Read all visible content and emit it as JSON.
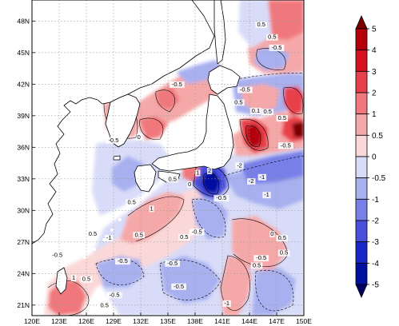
{
  "map": {
    "lon_range": [
      120,
      150
    ],
    "lat_range": [
      20,
      50
    ],
    "lon_ticks": [
      {
        "value": 120,
        "label": "120E"
      },
      {
        "value": 123,
        "label": "123E"
      },
      {
        "value": 126,
        "label": "126E"
      },
      {
        "value": 129,
        "label": "129E"
      },
      {
        "value": 132,
        "label": "132E"
      },
      {
        "value": 135,
        "label": "135E"
      },
      {
        "value": 138,
        "label": "138E"
      },
      {
        "value": 141,
        "label": "141E"
      },
      {
        "value": 144,
        "label": "144E"
      },
      {
        "value": 147,
        "label": "147E"
      },
      {
        "value": 150,
        "label": "150E"
      }
    ],
    "lat_ticks": [
      {
        "value": 21,
        "label": "21N"
      },
      {
        "value": 24,
        "label": "24N"
      },
      {
        "value": 27,
        "label": "27N"
      },
      {
        "value": 30,
        "label": "30N"
      },
      {
        "value": 33,
        "label": "33N"
      },
      {
        "value": 36,
        "label": "36N"
      },
      {
        "value": 39,
        "label": "39N"
      },
      {
        "value": 42,
        "label": "42N"
      },
      {
        "value": 45,
        "label": "45N"
      },
      {
        "value": 48,
        "label": "48N"
      }
    ],
    "gridlines": "dotted"
  },
  "colorbar": {
    "levels": [
      "5",
      "4",
      "3",
      "2",
      "1",
      "0.5",
      "0",
      "-0.5",
      "-1",
      "-2",
      "-3",
      "-4",
      "-5"
    ],
    "colors": [
      "#7a0000",
      "#b4000a",
      "#d61020",
      "#e8404a",
      "#f0787c",
      "#f5a8a8",
      "#fbd8d8",
      "#d8dcf8",
      "#a8b0f0",
      "#7880e8",
      "#4850dc",
      "#1828c8",
      "#0010a0",
      "#000060"
    ]
  },
  "contour_labels": [
    {
      "text": "0.5",
      "lon": 145.3,
      "lat": 47.5
    },
    {
      "text": "0.5",
      "lon": 146.5,
      "lat": 46.3
    },
    {
      "text": "-0.5",
      "lon": 147.0,
      "lat": 45.3
    },
    {
      "text": "-0.5",
      "lon": 136.0,
      "lat": 41.8
    },
    {
      "text": "-0.5",
      "lon": 143.5,
      "lat": 41.3
    },
    {
      "text": "0.5",
      "lon": 142.8,
      "lat": 40.1
    },
    {
      "text": "0.1",
      "lon": 144.7,
      "lat": 39.3
    },
    {
      "text": "0.5",
      "lon": 146.0,
      "lat": 39.2
    },
    {
      "text": "0.5",
      "lon": 147.6,
      "lat": 38.6
    },
    {
      "text": "-0.5",
      "lon": 129.0,
      "lat": 36.5
    },
    {
      "text": "0",
      "lon": 131.8,
      "lat": 36.8
    },
    {
      "text": "0",
      "lon": 147.5,
      "lat": 36.0
    },
    {
      "text": "-0.5",
      "lon": 148.0,
      "lat": 36.0
    },
    {
      "text": "2",
      "lon": 139.6,
      "lat": 33.6
    },
    {
      "text": "1",
      "lon": 138.3,
      "lat": 33.4
    },
    {
      "text": "0.5",
      "lon": 135.5,
      "lat": 32.8
    },
    {
      "text": "-1",
      "lon": 145.4,
      "lat": 33.0
    },
    {
      "text": "-2",
      "lon": 142.9,
      "lat": 34.1
    },
    {
      "text": "-2",
      "lon": 144.2,
      "lat": 32.6
    },
    {
      "text": "0",
      "lon": 137.4,
      "lat": 32.3
    },
    {
      "text": "-0.5",
      "lon": 140.9,
      "lat": 31.0
    },
    {
      "text": "0.5",
      "lon": 131.0,
      "lat": 30.6
    },
    {
      "text": "1",
      "lon": 133.2,
      "lat": 30.0
    },
    {
      "text": "-1",
      "lon": 145.9,
      "lat": 31.3
    },
    {
      "text": "0.5",
      "lon": 126.7,
      "lat": 27.6
    },
    {
      "text": "0.5",
      "lon": 131.8,
      "lat": 27.5
    },
    {
      "text": "-1",
      "lon": 128.5,
      "lat": 27.2
    },
    {
      "text": "0.5",
      "lon": 136.8,
      "lat": 27.3
    },
    {
      "text": "-0.5",
      "lon": 138.2,
      "lat": 27.8
    },
    {
      "text": "0",
      "lon": 146.5,
      "lat": 27.6
    },
    {
      "text": "0.5",
      "lon": 147.6,
      "lat": 27.2
    },
    {
      "text": "-0.5",
      "lon": 122.8,
      "lat": 25.6
    },
    {
      "text": "-0.5",
      "lon": 130.0,
      "lat": 25.0
    },
    {
      "text": "-0.5",
      "lon": 135.5,
      "lat": 24.8
    },
    {
      "text": "0.5",
      "lon": 144.8,
      "lat": 24.6
    },
    {
      "text": "0.5",
      "lon": 147.8,
      "lat": 25.8
    },
    {
      "text": "-0.5",
      "lon": 145.3,
      "lat": 25.3
    },
    {
      "text": "1",
      "lon": 124.6,
      "lat": 23.4
    },
    {
      "text": "0.5",
      "lon": 126.0,
      "lat": 23.3
    },
    {
      "text": "-0.5",
      "lon": 136.2,
      "lat": 22.6
    },
    {
      "text": "-0.5",
      "lon": 129.1,
      "lat": 21.8
    },
    {
      "text": "-1",
      "lon": 141.5,
      "lat": 21.0
    },
    {
      "text": "0.5",
      "lon": 128.0,
      "lat": 20.8
    }
  ]
}
